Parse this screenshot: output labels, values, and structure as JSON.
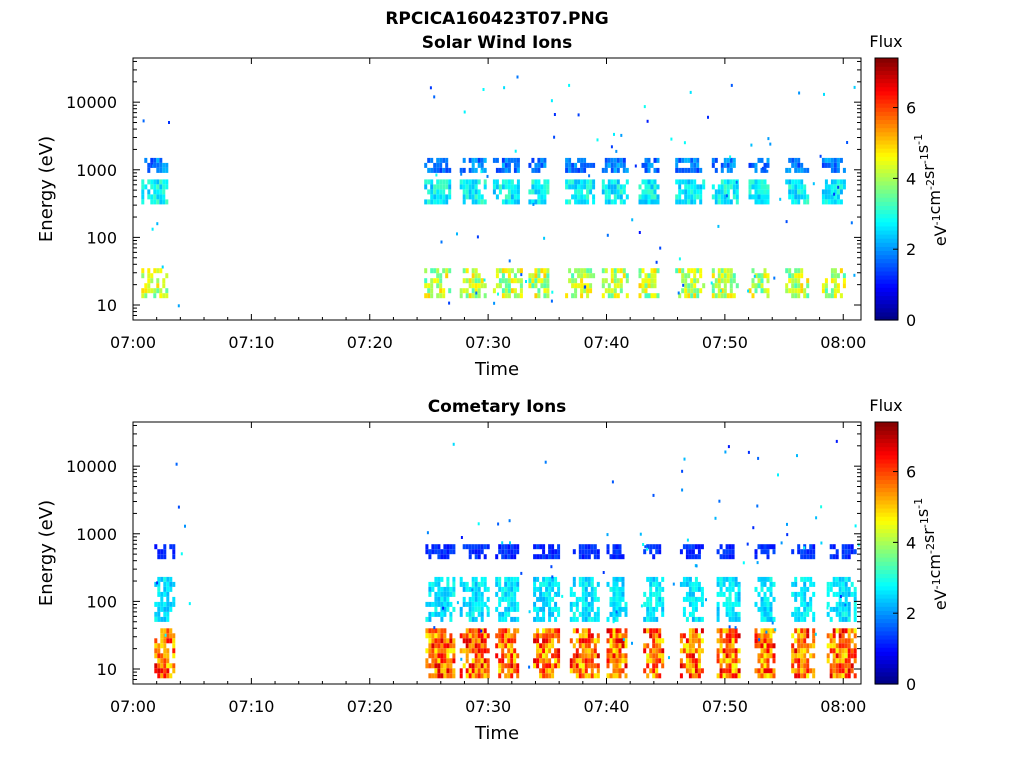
{
  "figure": {
    "title": "RPCICA160423T07.PNG"
  },
  "colorbar": {
    "label": "Flux",
    "unit_base": "eV",
    "unit_parts": [
      "-1",
      "cm",
      "-2",
      "sr",
      "-1",
      "s",
      "-1"
    ]
  },
  "chart_data": [
    {
      "type": "heatmap",
      "title": "Solar Wind Ions",
      "xlabel": "Time",
      "ylabel": "Energy (eV)",
      "x_ticks": [
        "07:00",
        "07:10",
        "07:20",
        "07:30",
        "07:40",
        "07:50",
        "08:00"
      ],
      "y_ticks": [
        10,
        100,
        1000,
        10000
      ],
      "y_scale": "log",
      "xlim_minutes": [
        0,
        61.5
      ],
      "ylim": [
        6,
        45000
      ],
      "colorbar_label": "Flux",
      "colorbar_ticks": [
        0,
        2,
        4,
        6
      ],
      "clim": [
        0,
        7.4
      ],
      "grid": false,
      "bursts_start_minutes": [
        0.7,
        24.6,
        27.6,
        30.4,
        33.4,
        36.5,
        39.6,
        42.7,
        45.8,
        48.9,
        52.0,
        55.1,
        58.2
      ],
      "bands": [
        {
          "e_min": 330,
          "e_max": 720,
          "flux_min": 2.2,
          "flux_max": 3.3
        },
        {
          "e_min": 1000,
          "e_max": 1500,
          "flux_min": 1.3,
          "flux_max": 2.3
        },
        {
          "e_min": 13,
          "e_max": 35,
          "flux_min": 3.2,
          "flux_max": 5.0
        }
      ]
    },
    {
      "type": "heatmap",
      "title": "Cometary Ions",
      "xlabel": "Time",
      "ylabel": "Energy (eV)",
      "x_ticks": [
        "07:00",
        "07:10",
        "07:20",
        "07:30",
        "07:40",
        "07:50",
        "08:00"
      ],
      "y_ticks": [
        10,
        100,
        1000,
        10000
      ],
      "y_scale": "log",
      "xlim_minutes": [
        0,
        61.5
      ],
      "ylim": [
        6,
        45000
      ],
      "colorbar_label": "Flux",
      "colorbar_ticks": [
        0,
        2,
        4,
        6
      ],
      "clim": [
        0,
        7.4
      ],
      "grid": false,
      "bursts_start_minutes": [
        1.8,
        24.7,
        27.6,
        30.6,
        33.8,
        36.9,
        40.0,
        43.1,
        46.2,
        49.3,
        52.5,
        55.6,
        58.6
      ],
      "bands": [
        {
          "e_min": 8,
          "e_max": 40,
          "flux_min": 4.5,
          "flux_max": 6.8
        },
        {
          "e_min": 50,
          "e_max": 230,
          "flux_min": 2.2,
          "flux_max": 3.0
        },
        {
          "e_min": 450,
          "e_max": 700,
          "flux_min": 1.0,
          "flux_max": 1.5
        }
      ]
    }
  ]
}
